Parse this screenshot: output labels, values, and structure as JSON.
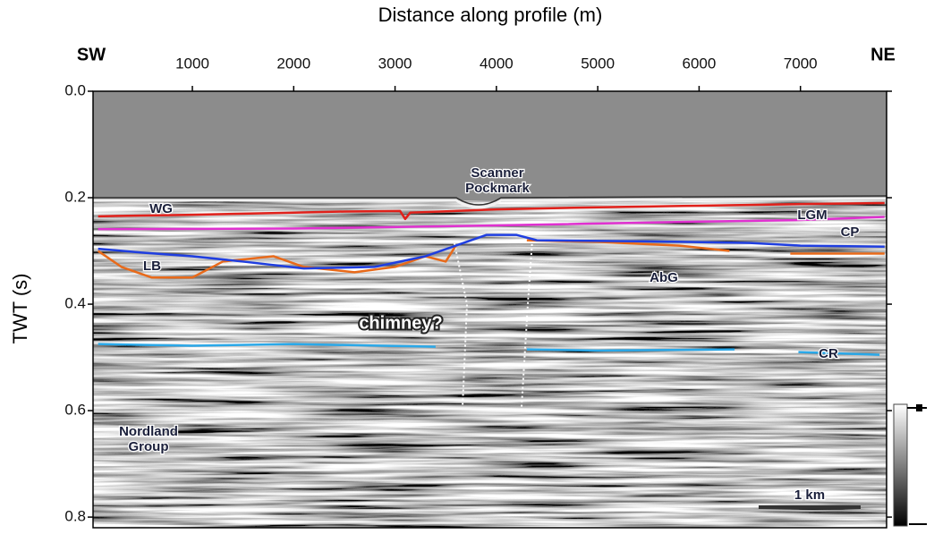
{
  "chart_data": {
    "type": "seismic-section",
    "title": "Distance along profile (m)",
    "y_label": "TWT (s)",
    "left_end": "SW",
    "right_end": "NE",
    "xlim": [
      20,
      7850
    ],
    "xticks": [
      1000,
      2000,
      3000,
      4000,
      5000,
      6000,
      7000
    ],
    "ylim": [
      0,
      0.82
    ],
    "yticks": [
      {
        "value": 0,
        "label": "0.0"
      },
      0.2,
      0.4,
      0.6,
      0.8
    ],
    "y_inverted": true,
    "horizons": [
      {
        "color": "#e0201a",
        "x": [
          70,
          1000,
          2000,
          2500,
          3050,
          3100,
          3150,
          4000,
          5000,
          6000,
          7000,
          7830
        ],
        "values": [
          0.235,
          0.232,
          0.228,
          0.226,
          0.225,
          0.24,
          0.228,
          0.222,
          0.218,
          0.215,
          0.212,
          0.21
        ]
      },
      {
        "color": "#e030d0",
        "x": [
          70,
          2000,
          4000,
          6000,
          7000,
          7830
        ],
        "values": [
          0.259,
          0.258,
          0.252,
          0.245,
          0.242,
          0.236
        ]
      },
      {
        "color": "#e86a1a",
        "x": [
          70,
          300,
          600,
          1000,
          1300,
          1800,
          2100,
          2600,
          3000,
          3300,
          3500,
          3600,
          3900,
          4300,
          5000,
          5800,
          6300,
          6600,
          6900,
          7830
        ],
        "values": [
          0.3,
          0.33,
          0.35,
          0.35,
          0.32,
          0.31,
          0.33,
          0.34,
          0.33,
          0.31,
          0.32,
          0.29,
          null,
          0.28,
          0.283,
          0.29,
          0.3,
          null,
          0.305,
          0.305
        ]
      },
      {
        "color": "#1f3ee0",
        "x": [
          70,
          500,
          1000,
          1500,
          2100,
          2800,
          3300,
          3600,
          3900,
          4200,
          4400,
          5500,
          6500,
          7000,
          7830
        ],
        "values": [
          0.296,
          0.303,
          0.31,
          0.32,
          0.333,
          0.33,
          0.31,
          0.29,
          0.27,
          0.27,
          0.28,
          0.282,
          0.285,
          0.29,
          0.292
        ]
      },
      {
        "color": "#2aa8e8",
        "x": [
          70,
          1000,
          2000,
          3400,
          3800,
          4300,
          5000,
          6350,
          6650,
          6980,
          7780
        ],
        "values": [
          0.475,
          0.478,
          0.475,
          0.48,
          null,
          0.485,
          0.487,
          0.485,
          null,
          0.49,
          0.495
        ]
      }
    ],
    "annotations": [
      "Scanner Pockmark",
      "WG",
      "LGM",
      "CP",
      "LB",
      "AbG",
      "chimney?",
      "CR",
      "Nordland Group"
    ],
    "scale_bar": "1 km"
  }
}
